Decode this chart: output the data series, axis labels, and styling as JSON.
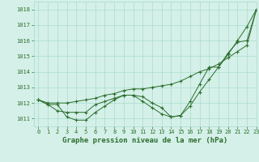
{
  "title": "Graphe pression niveau de la mer (hPa)",
  "bg_color": "#d4f0e8",
  "grid_color": "#aaddcc",
  "line_color": "#2d6e2d",
  "xlim": [
    -0.5,
    23
  ],
  "ylim": [
    1010.5,
    1018.5
  ],
  "yticks": [
    1011,
    1012,
    1013,
    1014,
    1015,
    1016,
    1017,
    1018
  ],
  "xticks": [
    0,
    1,
    2,
    3,
    4,
    5,
    6,
    7,
    8,
    9,
    10,
    11,
    12,
    13,
    14,
    15,
    16,
    17,
    18,
    19,
    20,
    21,
    22,
    23
  ],
  "line1": [
    1012.2,
    1011.9,
    1011.9,
    1011.1,
    1010.9,
    1010.9,
    1011.4,
    1011.8,
    1012.2,
    1012.5,
    1012.5,
    1012.4,
    1012.0,
    1011.7,
    1011.1,
    1011.2,
    1011.8,
    1012.7,
    1013.5,
    1014.3,
    1015.1,
    1016.0,
    1016.9,
    1018.0
  ],
  "line2": [
    1012.2,
    1011.9,
    1011.5,
    1011.4,
    1011.4,
    1011.4,
    1011.9,
    1012.1,
    1012.3,
    1012.5,
    1012.5,
    1012.1,
    1011.7,
    1011.3,
    1011.1,
    1011.2,
    1012.1,
    1013.2,
    1014.3,
    1014.3,
    1015.2,
    1015.9,
    1016.0,
    1018.0
  ],
  "line3": [
    1012.2,
    1012.0,
    1012.0,
    1012.0,
    1012.1,
    1012.2,
    1012.3,
    1012.5,
    1012.6,
    1012.8,
    1012.9,
    1012.9,
    1013.0,
    1013.1,
    1013.2,
    1013.4,
    1013.7,
    1014.0,
    1014.2,
    1014.5,
    1014.9,
    1015.3,
    1015.7,
    1018.0
  ],
  "tick_fontsize": 5.0,
  "xlabel_fontsize": 6.5
}
